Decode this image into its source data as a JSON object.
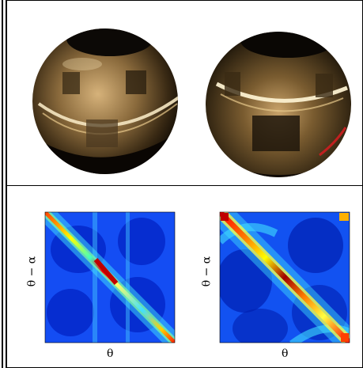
{
  "figure": {
    "top_row": {
      "images": [
        {
          "name": "spherical-mirror-photo-left"
        },
        {
          "name": "spherical-mirror-photo-right"
        }
      ]
    },
    "bottom_row": {
      "plots": [
        {
          "name": "similarity-matrix-left",
          "xlabel": "θ",
          "ylabel": "θ − α"
        },
        {
          "name": "similarity-matrix-right",
          "xlabel": "θ",
          "ylabel": "θ − α"
        }
      ]
    }
  },
  "colors": {
    "colormap": [
      "#00008f",
      "#0000ff",
      "#00a0ff",
      "#00ffff",
      "#80ff80",
      "#ffff00",
      "#ff8000",
      "#ff0000",
      "#800000"
    ],
    "frame": "#000000"
  }
}
